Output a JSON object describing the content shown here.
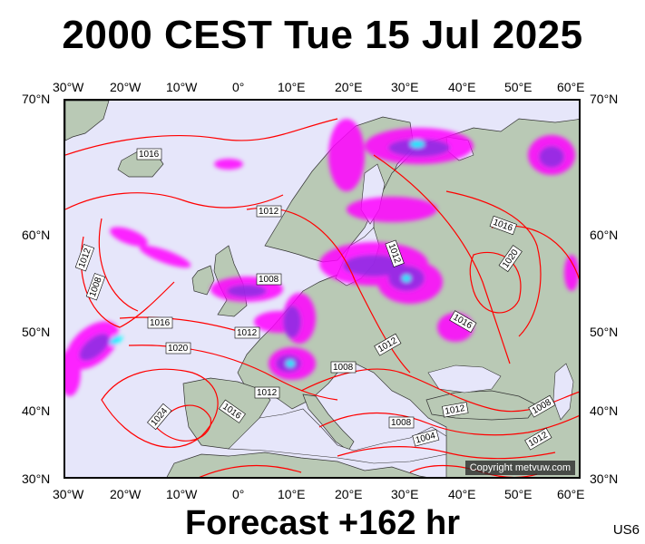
{
  "title": "2000 CEST Tue 15 Jul 2025",
  "footer": "Forecast +162 hr",
  "code": "US6",
  "copyright": "Copyright metvuw.com",
  "lon_labels": [
    "30°W",
    "20°W",
    "10°W",
    "0°",
    "10°E",
    "20°E",
    "30°E",
    "40°E",
    "50°E",
    "60°E"
  ],
  "lat_labels": [
    "70°N",
    "60°N",
    "50°N",
    "40°N",
    "30°N"
  ],
  "isobars": [
    "1016",
    "1012",
    "1008",
    "1012",
    "1016",
    "1020",
    "1024",
    "1012",
    "1008",
    "1012",
    "1016",
    "1020",
    "1012",
    "1016",
    "1008",
    "1016",
    "1012",
    "1008",
    "1004",
    "1012",
    "1008",
    "1012"
  ],
  "colors": {
    "ocean": "#e6e6fa",
    "land": "#b9c9b5",
    "isobar": "#ff0000",
    "precip_light": "#ff00ff",
    "precip_mid": "#8a2be2",
    "precip_heavy": "#00ffff"
  }
}
